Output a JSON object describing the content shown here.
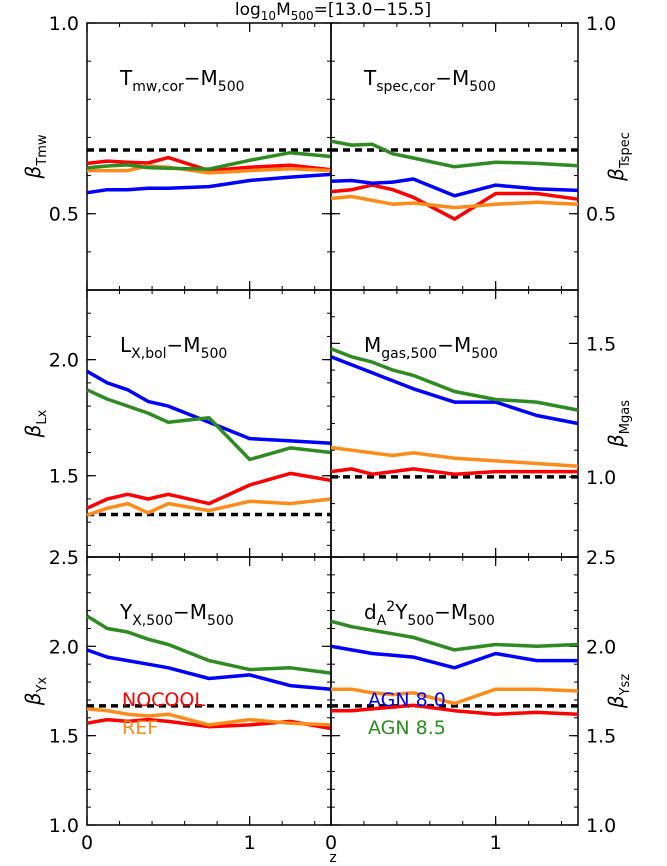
{
  "chart_data": {
    "type": "line",
    "title": "log10M500=[13.0-15.5]",
    "xlabel": "z",
    "xlim": [
      0,
      1.5
    ],
    "xticks": [
      0,
      1
    ],
    "series_styles": [
      {
        "name": "NOCOOL",
        "color": "#ff0000"
      },
      {
        "name": "REF",
        "color": "#ff8c1a"
      },
      {
        "name": "AGN 8.0",
        "color": "#0000ff"
      },
      {
        "name": "AGN 8.5",
        "color": "#2e8b22"
      }
    ],
    "reference_line": {
      "style": "dashed",
      "color": "#000000"
    },
    "panels": [
      {
        "id": "tmw",
        "label": "Tmw,cor−M500",
        "ylabel": "βTmw",
        "yaxis_side": "left",
        "ylim": [
          0.3,
          1.0
        ],
        "yticks": [
          0.5,
          1.0
        ],
        "ytick_labels": [
          "0.5",
          "1.0"
        ],
        "reference": 0.667,
        "series": [
          {
            "name": "NOCOOL",
            "x": [
              0,
              0.125,
              0.25,
              0.375,
              0.5,
              0.75,
              1.0,
              1.25,
              1.5
            ],
            "y": [
              0.632,
              0.638,
              0.635,
              0.633,
              0.647,
              0.613,
              0.622,
              0.627,
              0.615
            ]
          },
          {
            "name": "REF",
            "x": [
              0,
              0.125,
              0.25,
              0.375,
              0.5,
              0.75,
              1.0,
              1.25,
              1.5
            ],
            "y": [
              0.613,
              0.613,
              0.613,
              0.625,
              0.622,
              0.607,
              0.613,
              0.618,
              0.613
            ]
          },
          {
            "name": "AGN 8.0",
            "x": [
              0,
              0.125,
              0.25,
              0.375,
              0.5,
              0.75,
              1.0,
              1.25,
              1.5
            ],
            "y": [
              0.555,
              0.563,
              0.563,
              0.567,
              0.567,
              0.571,
              0.587,
              0.596,
              0.603
            ]
          },
          {
            "name": "AGN 8.5",
            "x": [
              0,
              0.125,
              0.25,
              0.375,
              0.5,
              0.75,
              1.0,
              1.25,
              1.5
            ],
            "y": [
              0.62,
              0.625,
              0.628,
              0.621,
              0.619,
              0.617,
              0.64,
              0.66,
              0.65
            ]
          }
        ]
      },
      {
        "id": "tspec",
        "label": "Tspec,cor−M500",
        "ylabel": "βTspec",
        "yaxis_side": "right",
        "ylim": [
          0.3,
          1.0
        ],
        "yticks": [
          0.5,
          1.0
        ],
        "ytick_labels": [
          "0.5",
          "1.0"
        ],
        "reference": 0.667,
        "series": [
          {
            "name": "NOCOOL",
            "x": [
              0,
              0.125,
              0.25,
              0.375,
              0.5,
              0.75,
              1.0,
              1.25,
              1.5
            ],
            "y": [
              0.558,
              0.563,
              0.575,
              0.563,
              0.543,
              0.486,
              0.553,
              0.553,
              0.538
            ]
          },
          {
            "name": "REF",
            "x": [
              0,
              0.125,
              0.25,
              0.375,
              0.5,
              0.75,
              1.0,
              1.25,
              1.5
            ],
            "y": [
              0.54,
              0.545,
              0.535,
              0.525,
              0.528,
              0.516,
              0.525,
              0.53,
              0.525
            ]
          },
          {
            "name": "AGN 8.0",
            "x": [
              0,
              0.125,
              0.25,
              0.375,
              0.5,
              0.75,
              1.0,
              1.25,
              1.5
            ],
            "y": [
              0.585,
              0.587,
              0.58,
              0.583,
              0.591,
              0.547,
              0.575,
              0.565,
              0.561
            ]
          },
          {
            "name": "AGN 8.5",
            "x": [
              0,
              0.125,
              0.25,
              0.375,
              0.5,
              0.75,
              1.0,
              1.25,
              1.5
            ],
            "y": [
              0.69,
              0.68,
              0.682,
              0.657,
              0.646,
              0.623,
              0.635,
              0.632,
              0.626
            ]
          }
        ]
      },
      {
        "id": "lx",
        "label": "LX,bol−M500",
        "ylabel": "βLx",
        "yaxis_side": "left",
        "ylim": [
          1.15,
          2.3
        ],
        "yticks": [
          1.5,
          2.0
        ],
        "ytick_labels": [
          "1.5",
          "2.0"
        ],
        "reference": 1.333,
        "series": [
          {
            "name": "NOCOOL",
            "x": [
              0,
              0.125,
              0.25,
              0.375,
              0.5,
              0.75,
              1.0,
              1.25,
              1.5
            ],
            "y": [
              1.36,
              1.4,
              1.42,
              1.4,
              1.42,
              1.38,
              1.46,
              1.51,
              1.48
            ]
          },
          {
            "name": "REF",
            "x": [
              0,
              0.125,
              0.25,
              0.375,
              0.5,
              0.75,
              1.0,
              1.25,
              1.5
            ],
            "y": [
              1.33,
              1.36,
              1.38,
              1.34,
              1.38,
              1.35,
              1.39,
              1.38,
              1.4
            ]
          },
          {
            "name": "AGN 8.0",
            "x": [
              0,
              0.125,
              0.25,
              0.375,
              0.5,
              0.75,
              1.0,
              1.25,
              1.5
            ],
            "y": [
              1.95,
              1.9,
              1.87,
              1.82,
              1.8,
              1.73,
              1.66,
              1.65,
              1.64
            ]
          },
          {
            "name": "AGN 8.5",
            "x": [
              0,
              0.125,
              0.25,
              0.375,
              0.5,
              0.75,
              1.0,
              1.25,
              1.5
            ],
            "y": [
              1.87,
              1.83,
              1.8,
              1.77,
              1.73,
              1.75,
              1.57,
              1.62,
              1.6
            ]
          }
        ]
      },
      {
        "id": "mgas",
        "label": "Mgas,500−M500",
        "ylabel": "βMgas",
        "yaxis_side": "right",
        "ylim": [
          0.7,
          1.7
        ],
        "yticks": [
          1.0,
          1.5
        ],
        "ytick_labels": [
          "1.0",
          "1.5"
        ],
        "reference": 1.0,
        "series": [
          {
            "name": "NOCOOL",
            "x": [
              0,
              0.125,
              0.25,
              0.375,
              0.5,
              0.75,
              1.0,
              1.25,
              1.5
            ],
            "y": [
              1.02,
              1.03,
              1.01,
              1.02,
              1.03,
              1.01,
              1.02,
              1.02,
              1.02
            ]
          },
          {
            "name": "REF",
            "x": [
              0,
              0.125,
              0.25,
              0.375,
              0.5,
              0.75,
              1.0,
              1.25,
              1.5
            ],
            "y": [
              1.11,
              1.1,
              1.09,
              1.08,
              1.09,
              1.07,
              1.06,
              1.05,
              1.04
            ]
          },
          {
            "name": "AGN 8.0",
            "x": [
              0,
              0.125,
              0.25,
              0.375,
              0.5,
              0.75,
              1.0,
              1.25,
              1.5
            ],
            "y": [
              1.45,
              1.42,
              1.39,
              1.36,
              1.33,
              1.28,
              1.28,
              1.23,
              1.2
            ]
          },
          {
            "name": "AGN 8.5",
            "x": [
              0,
              0.125,
              0.25,
              0.375,
              0.5,
              0.75,
              1.0,
              1.25,
              1.5
            ],
            "y": [
              1.48,
              1.45,
              1.43,
              1.4,
              1.38,
              1.32,
              1.29,
              1.28,
              1.25
            ]
          }
        ]
      },
      {
        "id": "yx",
        "label": "YX,500−M500",
        "ylabel": "βYx",
        "yaxis_side": "left",
        "ylim": [
          1.0,
          2.5
        ],
        "yticks": [
          1.0,
          1.5,
          2.0,
          2.5
        ],
        "ytick_labels": [
          "1.0",
          "1.5",
          "2.0",
          "2.5"
        ],
        "reference": 1.667,
        "series": [
          {
            "name": "NOCOOL",
            "x": [
              0,
              0.125,
              0.25,
              0.375,
              0.5,
              0.75,
              1.0,
              1.25,
              1.5
            ],
            "y": [
              1.57,
              1.59,
              1.58,
              1.59,
              1.58,
              1.55,
              1.56,
              1.58,
              1.54
            ]
          },
          {
            "name": "REF",
            "x": [
              0,
              0.125,
              0.25,
              0.375,
              0.5,
              0.75,
              1.0,
              1.25,
              1.5
            ],
            "y": [
              1.65,
              1.64,
              1.62,
              1.61,
              1.62,
              1.56,
              1.59,
              1.57,
              1.56
            ]
          },
          {
            "name": "AGN 8.0",
            "x": [
              0,
              0.125,
              0.25,
              0.375,
              0.5,
              0.75,
              1.0,
              1.25,
              1.5
            ],
            "y": [
              1.98,
              1.94,
              1.92,
              1.9,
              1.88,
              1.82,
              1.84,
              1.78,
              1.76
            ]
          },
          {
            "name": "AGN 8.5",
            "x": [
              0,
              0.125,
              0.25,
              0.375,
              0.5,
              0.75,
              1.0,
              1.25,
              1.5
            ],
            "y": [
              2.17,
              2.1,
              2.08,
              2.04,
              2.01,
              1.92,
              1.87,
              1.88,
              1.85
            ]
          }
        ]
      },
      {
        "id": "ysz",
        "label": "dA2Y500−M500",
        "ylabel": "βYsz",
        "yaxis_side": "right",
        "ylim": [
          1.0,
          2.5
        ],
        "yticks": [
          1.0,
          1.5,
          2.0,
          2.5
        ],
        "ytick_labels": [
          "1.0",
          "1.5",
          "2.0",
          "2.5"
        ],
        "reference": 1.667,
        "series": [
          {
            "name": "NOCOOL",
            "x": [
              0,
              0.125,
              0.25,
              0.375,
              0.5,
              0.75,
              1.0,
              1.25,
              1.5
            ],
            "y": [
              1.64,
              1.64,
              1.65,
              1.66,
              1.67,
              1.64,
              1.62,
              1.63,
              1.62
            ]
          },
          {
            "name": "REF",
            "x": [
              0,
              0.125,
              0.25,
              0.375,
              0.5,
              0.75,
              1.0,
              1.25,
              1.5
            ],
            "y": [
              1.76,
              1.76,
              1.74,
              1.73,
              1.74,
              1.68,
              1.76,
              1.76,
              1.75
            ]
          },
          {
            "name": "AGN 8.0",
            "x": [
              0,
              0.125,
              0.25,
              0.375,
              0.5,
              0.75,
              1.0,
              1.25,
              1.5
            ],
            "y": [
              2.0,
              1.98,
              1.96,
              1.95,
              1.94,
              1.88,
              1.96,
              1.92,
              1.92
            ]
          },
          {
            "name": "AGN 8.5",
            "x": [
              0,
              0.125,
              0.25,
              0.375,
              0.5,
              0.75,
              1.0,
              1.25,
              1.5
            ],
            "y": [
              2.14,
              2.11,
              2.09,
              2.07,
              2.05,
              1.98,
              2.01,
              2.0,
              2.01
            ]
          }
        ]
      }
    ],
    "legend": [
      {
        "text": "NOCOOL",
        "color": "#ff0000",
        "panel": "yx"
      },
      {
        "text": "REF",
        "color": "#ff8c1a",
        "panel": "yx"
      },
      {
        "text": "AGN  8.0",
        "color": "#0000ff",
        "panel": "ysz"
      },
      {
        "text": "AGN  8.5",
        "color": "#2e8b22",
        "panel": "ysz"
      }
    ]
  }
}
